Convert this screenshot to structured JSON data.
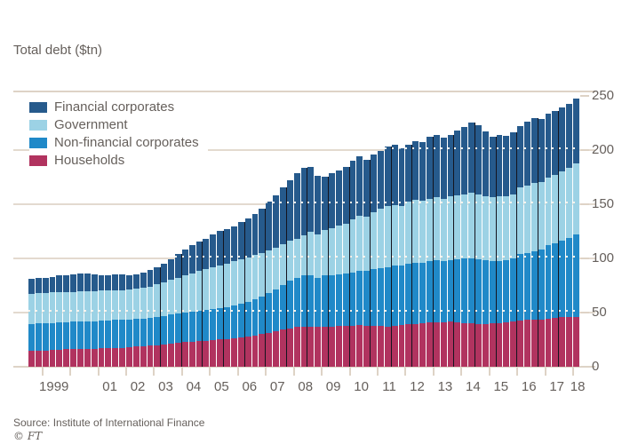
{
  "title": "Total debt ($tn)",
  "source": "Source: Institute of International Finance",
  "copyright": "© FT",
  "colors": {
    "households": "#B1335F",
    "non_financial_corporates": "#2089C8",
    "government": "#9CD2E5",
    "financial_corporates": "#265A8C",
    "axis_line": "#DED3C6",
    "text": "#66605C",
    "separator": "#14141E",
    "background": "#FFFFFF"
  },
  "legend": [
    {
      "label": "Financial corporates",
      "color": "#265A8C"
    },
    {
      "label": "Government",
      "color": "#9CD2E5"
    },
    {
      "label": "Non-financial corporates",
      "color": "#2089C8"
    },
    {
      "label": "Households",
      "color": "#B1335F"
    }
  ],
  "chart_data": {
    "type": "bar",
    "stacked": true,
    "title": "Total debt ($tn)",
    "xlabel": "",
    "ylabel": "Total debt ($tn)",
    "ylim": [
      0,
      250
    ],
    "yticks": [
      0,
      50,
      100,
      150,
      200,
      250
    ],
    "grid": true,
    "legend_position": "top-left",
    "x_unit": "quarter",
    "x_start": "1998 Q3",
    "x_end": "2018 Q1",
    "x_tick_labels": [
      "1999",
      "",
      "01",
      "02",
      "03",
      "04",
      "05",
      "06",
      "07",
      "08",
      "09",
      "10",
      "11",
      "12",
      "13",
      "14",
      "15",
      "16",
      "17",
      "18"
    ],
    "series": [
      {
        "name": "Households",
        "color": "#B1335F",
        "values": [
          14.5,
          15,
          15,
          15.5,
          15.5,
          16,
          16,
          16,
          16.5,
          16.5,
          17,
          17,
          17.5,
          17.5,
          18,
          18.5,
          19,
          19.5,
          20,
          20.5,
          21.5,
          22,
          22.5,
          23,
          23.5,
          24,
          24.5,
          25,
          25.5,
          26.5,
          27,
          28,
          29,
          30,
          31,
          32.5,
          34,
          35.5,
          36.5,
          37,
          37,
          36.5,
          37,
          37,
          37.5,
          37.5,
          38,
          38.5,
          38,
          37.5,
          37.5,
          37,
          37.5,
          38.5,
          39,
          39.5,
          40,
          40.5,
          41,
          41,
          41.5,
          41,
          40,
          40,
          39.5,
          39.5,
          40,
          40,
          40.5,
          41.5,
          42.5,
          43,
          43,
          43.5,
          44.5,
          45,
          45.5,
          46,
          46
        ]
      },
      {
        "name": "Non-financial corporates",
        "color": "#2089C8",
        "values": [
          25,
          25,
          25,
          25,
          25.5,
          25,
          25.5,
          26,
          25.5,
          25.5,
          25.5,
          25.5,
          25.5,
          25.5,
          25.5,
          25.5,
          25.5,
          25.5,
          26,
          26.5,
          26.5,
          27,
          27.5,
          28,
          28,
          28,
          28.5,
          29,
          29.5,
          30,
          31,
          32,
          33,
          35,
          37,
          38.5,
          41,
          43.5,
          45.5,
          47,
          47,
          45.5,
          47,
          47,
          47.5,
          48.5,
          49,
          49.5,
          50,
          52.5,
          53.5,
          55,
          55.5,
          54.5,
          56,
          56.5,
          56,
          56.5,
          57,
          56,
          56.5,
          58,
          59.5,
          60,
          59.5,
          58.5,
          57,
          57.5,
          57.5,
          58.5,
          61.5,
          62,
          63,
          64.5,
          67.5,
          69,
          70.5,
          72.5,
          76
        ]
      },
      {
        "name": "Government",
        "color": "#9CD2E5",
        "values": [
          28,
          28,
          28,
          28,
          28,
          28,
          27.5,
          27.5,
          27.5,
          27.5,
          27.5,
          27.5,
          27.5,
          27.5,
          27.5,
          28,
          28.5,
          29,
          30,
          31,
          32,
          33,
          34,
          35,
          36.5,
          38,
          39,
          39.5,
          40,
          40.5,
          41,
          41,
          41,
          40,
          39,
          39,
          38,
          37,
          36,
          37,
          40,
          40,
          42,
          44,
          45,
          46,
          49,
          51,
          50,
          52,
          55,
          56,
          56,
          55,
          57,
          58,
          57,
          58,
          58,
          58,
          59,
          59,
          59.5,
          60,
          60,
          59,
          59,
          59.5,
          59,
          59,
          61,
          62,
          63,
          62,
          62,
          63,
          64,
          64.5,
          65
        ]
      },
      {
        "name": "Financial corporates",
        "color": "#265A8C",
        "values": [
          13.5,
          14,
          14,
          14.5,
          15,
          15,
          16,
          16.5,
          16.5,
          15.5,
          14,
          14,
          14.5,
          14.5,
          13,
          13,
          14,
          15,
          16,
          17,
          19,
          22,
          24,
          26,
          27,
          28,
          30,
          31.5,
          32,
          32,
          34,
          36,
          38,
          41,
          45,
          48,
          52,
          56,
          60,
          62,
          60,
          54,
          49,
          50,
          51,
          52,
          54,
          55,
          53,
          54,
          53,
          55,
          56,
          53,
          53,
          54,
          54,
          57,
          58,
          56,
          57,
          60,
          62,
          65,
          64,
          60,
          56,
          57,
          56,
          57,
          57,
          59,
          60,
          58,
          59,
          59,
          59,
          59,
          60
        ]
      }
    ]
  }
}
